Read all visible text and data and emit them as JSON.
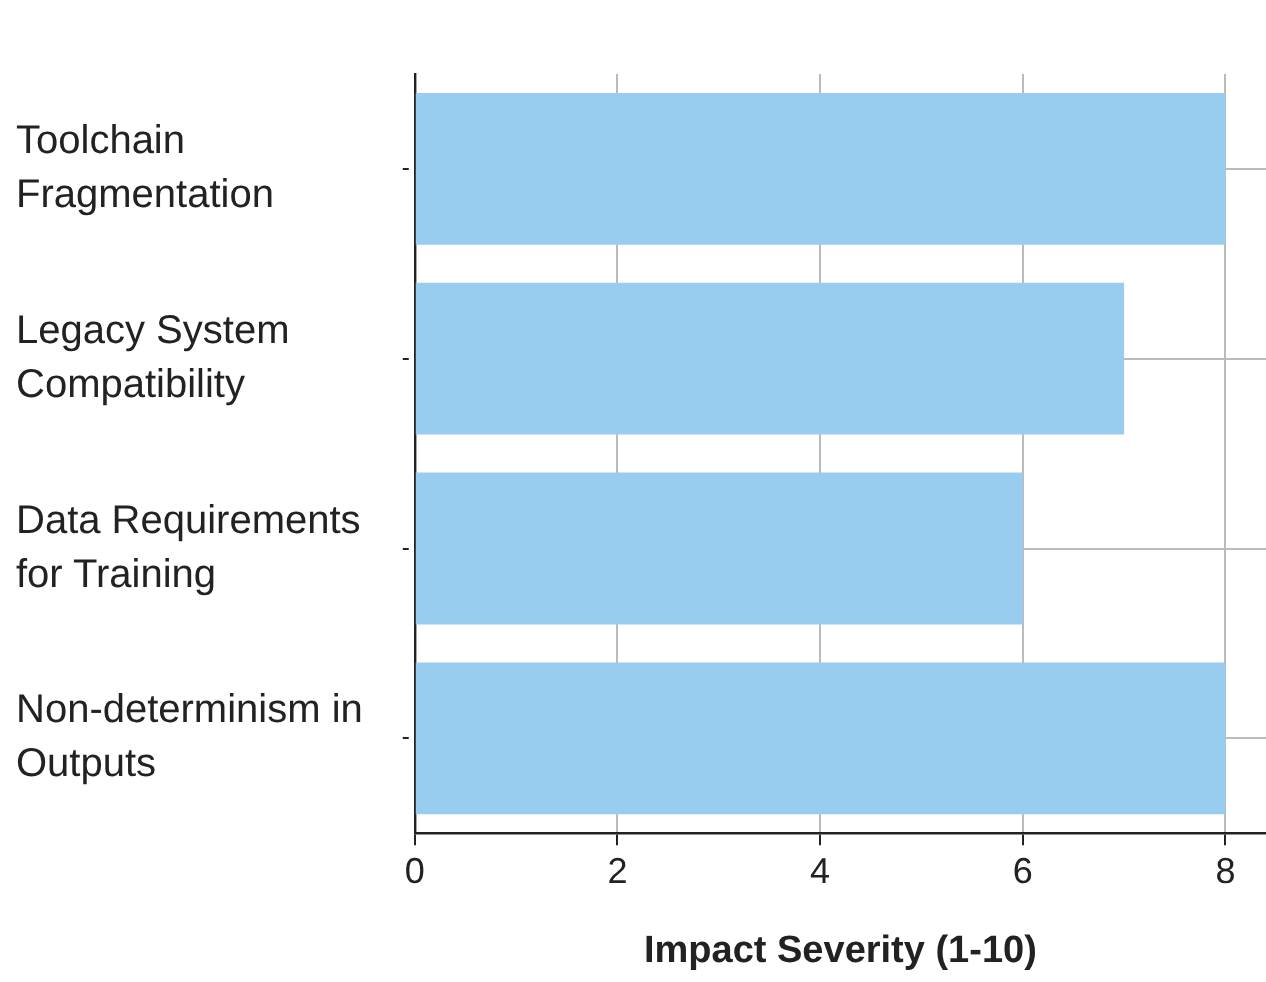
{
  "chart_data": {
    "type": "bar",
    "orientation": "horizontal",
    "xlabel": "Impact Severity (1-10)",
    "categories": [
      "Toolchain Fragmentation",
      "Legacy System Compatibility",
      "Data Requirements for Training",
      "Non-determinism in Outputs"
    ],
    "values": [
      8,
      7,
      6,
      8
    ],
    "color": "#99cdf0",
    "xlim": [
      0,
      8.4
    ],
    "xticks": [
      0,
      2,
      4,
      6,
      8
    ],
    "grid": true,
    "legend": false
  }
}
